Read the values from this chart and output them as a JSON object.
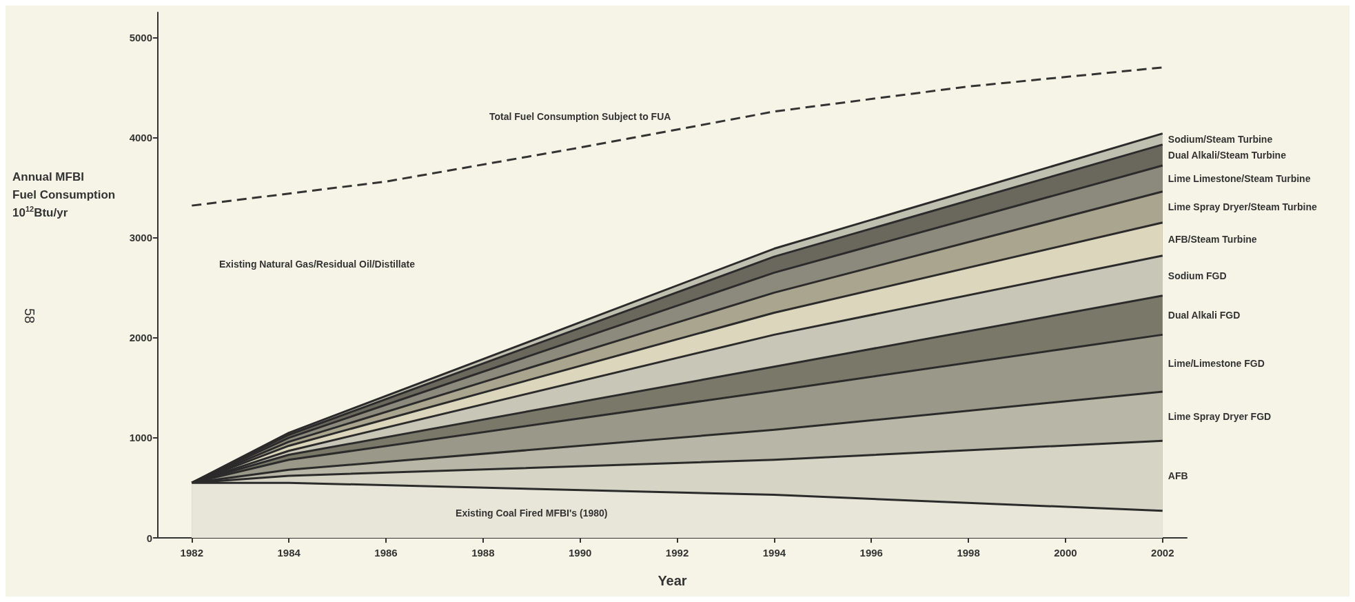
{
  "chart_data": {
    "type": "area",
    "stacked": true,
    "xlabel": "Year",
    "ylabel": "Annual MFBI Fuel Consumption 10$^{12}$Btu/yr",
    "x": [
      1982,
      1984,
      1994,
      2002
    ],
    "series": [
      {
        "name": "Existing Coal Fired MFBI's (1980)",
        "color": "#e8e6d8",
        "values": [
          550,
          550,
          430,
          270
        ]
      },
      {
        "name": "AFB",
        "color": "#d6d4c4",
        "values": [
          0,
          70,
          350,
          700
        ]
      },
      {
        "name": "Lime Spray Dryer FGD",
        "color": "#b8b6a6",
        "values": [
          0,
          60,
          300,
          490
        ]
      },
      {
        "name": "Lime/Limestone FGD",
        "color": "#9a9888",
        "values": [
          0,
          100,
          390,
          570
        ]
      },
      {
        "name": "Dual Alkali FGD",
        "color": "#7a7868",
        "values": [
          0,
          50,
          240,
          390
        ]
      },
      {
        "name": "Sodium FGD",
        "color": "#c8c6b6",
        "values": [
          0,
          40,
          320,
          400
        ]
      },
      {
        "name": "AFB/Steam Turbine",
        "color": "#dcd6bc",
        "values": [
          0,
          50,
          220,
          330
        ]
      },
      {
        "name": "Lime Spray Dryer/Steam Turbine",
        "color": "#aaa58e",
        "values": [
          0,
          40,
          200,
          310
        ]
      },
      {
        "name": "Lime Limestone/Steam Turbine",
        "color": "#8c8a7c",
        "values": [
          0,
          40,
          200,
          260
        ]
      },
      {
        "name": "Dual Alkali/Steam Turbine",
        "color": "#6a685c",
        "values": [
          0,
          30,
          160,
          210
        ]
      },
      {
        "name": "Sodium/Steam Turbine",
        "color": "#bfc0b0",
        "values": [
          0,
          20,
          80,
          110
        ]
      },
      {
        "name": "Total Fuel Consumption Subject to FUA",
        "type": "line",
        "line_style": "dashed",
        "color": "#333333",
        "x": [
          1982,
          1986,
          1990,
          1994,
          1998,
          2002
        ],
        "values": [
          3320,
          3560,
          3900,
          4260,
          4510,
          4700
        ]
      }
    ],
    "annotations": [
      "Existing Natural Gas/Residual Oil/Distillate",
      "58"
    ],
    "xlim": [
      1981.3,
      2002.5
    ],
    "xticks": [
      1982,
      1984,
      1986,
      1988,
      1990,
      1992,
      1994,
      1996,
      1998,
      2000,
      2002
    ],
    "ylim": [
      0,
      5250
    ],
    "yticks": [
      0,
      1000,
      2000,
      3000,
      4000,
      5000
    ],
    "grid": false,
    "legend": false
  }
}
